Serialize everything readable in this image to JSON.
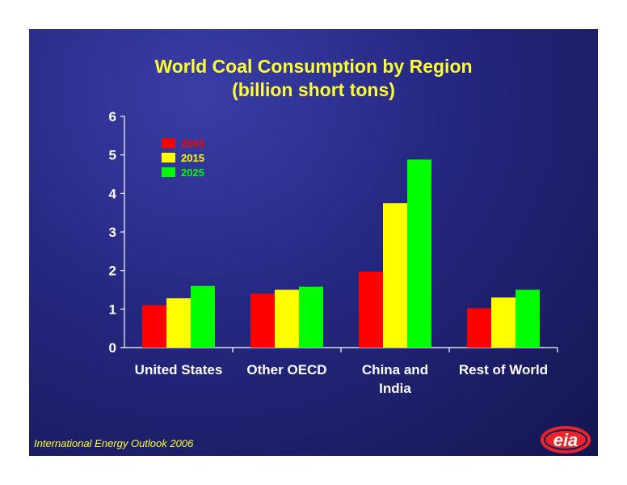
{
  "chart_data": {
    "type": "bar",
    "title": [
      "World Coal Consumption by Region",
      "(billion short tons)"
    ],
    "categories": [
      [
        "United States"
      ],
      [
        "Other OECD"
      ],
      [
        "China and",
        "India"
      ],
      [
        "Rest of World"
      ]
    ],
    "series": [
      {
        "name": "2003",
        "color": "#ff0000",
        "values": [
          1.1,
          1.4,
          1.97,
          1.02
        ]
      },
      {
        "name": "2015",
        "color": "#ffff00",
        "values": [
          1.28,
          1.5,
          3.75,
          1.3
        ]
      },
      {
        "name": "2025",
        "color": "#00ff00",
        "values": [
          1.6,
          1.58,
          4.88,
          1.5
        ]
      }
    ],
    "ylim": [
      0,
      6
    ],
    "yticks": [
      "0",
      "1",
      "2",
      "3",
      "4",
      "5",
      "6"
    ],
    "legend": "top-left",
    "grid": false
  },
  "footer": "International Energy Outlook 2006",
  "logo": {
    "text": "eia",
    "color": "#e8262a"
  }
}
